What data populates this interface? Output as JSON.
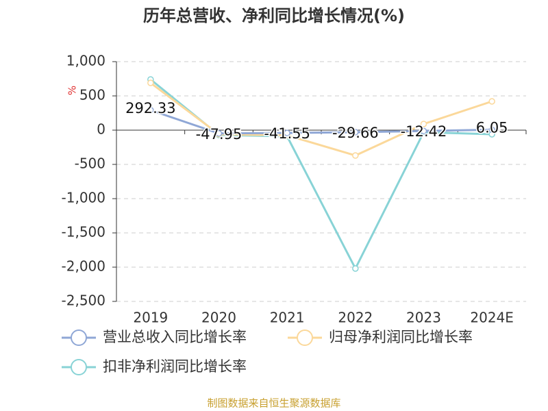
{
  "chart_data": {
    "type": "line",
    "title": "历年总营收、净利同比增长情况(%)",
    "y_label": "%",
    "categories": [
      "2019",
      "2020",
      "2021",
      "2022",
      "2023",
      "2024E"
    ],
    "series": [
      {
        "name": "营业总收入同比增长率",
        "color": "#8fa7d6",
        "values": [
          292.33,
          -47.95,
          -41.55,
          -29.66,
          -12.42,
          6.05
        ],
        "show_labels": true
      },
      {
        "name": "归母净利润同比增长率",
        "color": "#fbd89a",
        "values": [
          690,
          -60,
          -75,
          -370,
          90,
          420
        ]
      },
      {
        "name": "扣非净利润同比增长率",
        "color": "#88d3d6",
        "values": [
          740,
          -70,
          -90,
          -2020,
          -30,
          -60
        ]
      }
    ],
    "ylim": [
      -2500,
      1000
    ],
    "yticks": [
      {
        "value": -2500,
        "label": "-2,500"
      },
      {
        "value": -2000,
        "label": "-2,000"
      },
      {
        "value": -1500,
        "label": "-1,500"
      },
      {
        "value": -1000,
        "label": "-1,000"
      },
      -500,
      0,
      500,
      {
        "value": 1000,
        "label": "1,000"
      }
    ],
    "grid": true,
    "source": "制图数据来自恒生聚源数据库"
  }
}
